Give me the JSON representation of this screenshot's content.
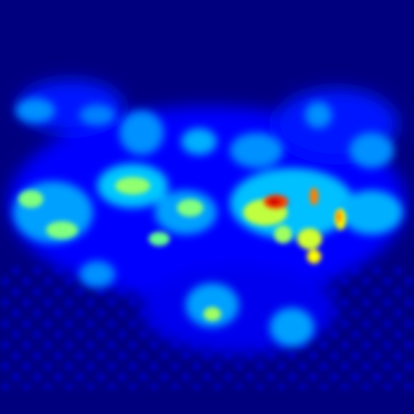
{
  "colors": {
    "background": "#00007f",
    "scale": [
      "#00007f",
      "#0000ff",
      "#0080ff",
      "#00ffff",
      "#80ff80",
      "#ffff00",
      "#ff8000",
      "#ff0000",
      "#7f0000"
    ]
  }
}
